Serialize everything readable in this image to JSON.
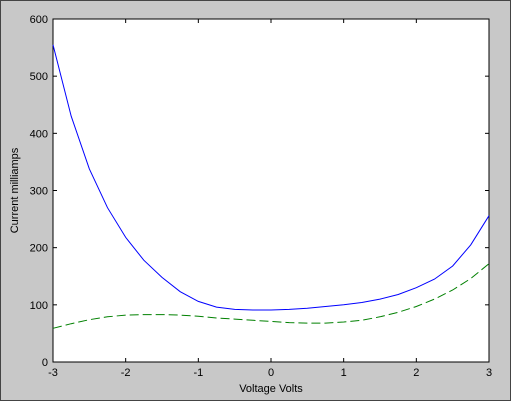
{
  "chart_data": {
    "type": "line",
    "title": "",
    "xlabel": "Voltage Volts",
    "ylabel": "Current milliamps",
    "xlim": [
      -3,
      3
    ],
    "ylim": [
      0,
      600
    ],
    "xticks": [
      -3,
      -2,
      -1,
      0,
      1,
      2,
      3
    ],
    "yticks": [
      0,
      100,
      200,
      300,
      400,
      500,
      600
    ],
    "grid": false,
    "legend": "none",
    "series": [
      {
        "style": "solid",
        "color": "#0000ff",
        "x": [
          -3.0,
          -2.75,
          -2.5,
          -2.25,
          -2.0,
          -1.75,
          -1.5,
          -1.25,
          -1.0,
          -0.75,
          -0.5,
          -0.25,
          0.0,
          0.25,
          0.5,
          0.75,
          1.0,
          1.25,
          1.5,
          1.75,
          2.0,
          2.25,
          2.5,
          2.75,
          3.0
        ],
        "y": [
          555,
          430,
          338,
          270,
          218,
          178,
          148,
          123,
          106,
          96,
          92,
          91,
          91,
          92,
          94,
          97,
          100,
          104,
          110,
          118,
          130,
          145,
          168,
          205,
          256
        ]
      },
      {
        "style": "dashed",
        "color": "#008000",
        "x": [
          -3.0,
          -2.75,
          -2.5,
          -2.25,
          -2.0,
          -1.75,
          -1.5,
          -1.25,
          -1.0,
          -0.75,
          -0.5,
          -0.25,
          0.0,
          0.25,
          0.5,
          0.75,
          1.0,
          1.25,
          1.5,
          1.75,
          2.0,
          2.25,
          2.5,
          2.75,
          3.0
        ],
        "y": [
          59,
          67,
          74,
          79,
          82,
          83,
          83,
          82,
          80,
          77,
          75,
          73,
          71,
          69,
          68,
          68,
          70,
          73,
          79,
          87,
          97,
          110,
          126,
          146,
          172
        ]
      }
    ]
  }
}
